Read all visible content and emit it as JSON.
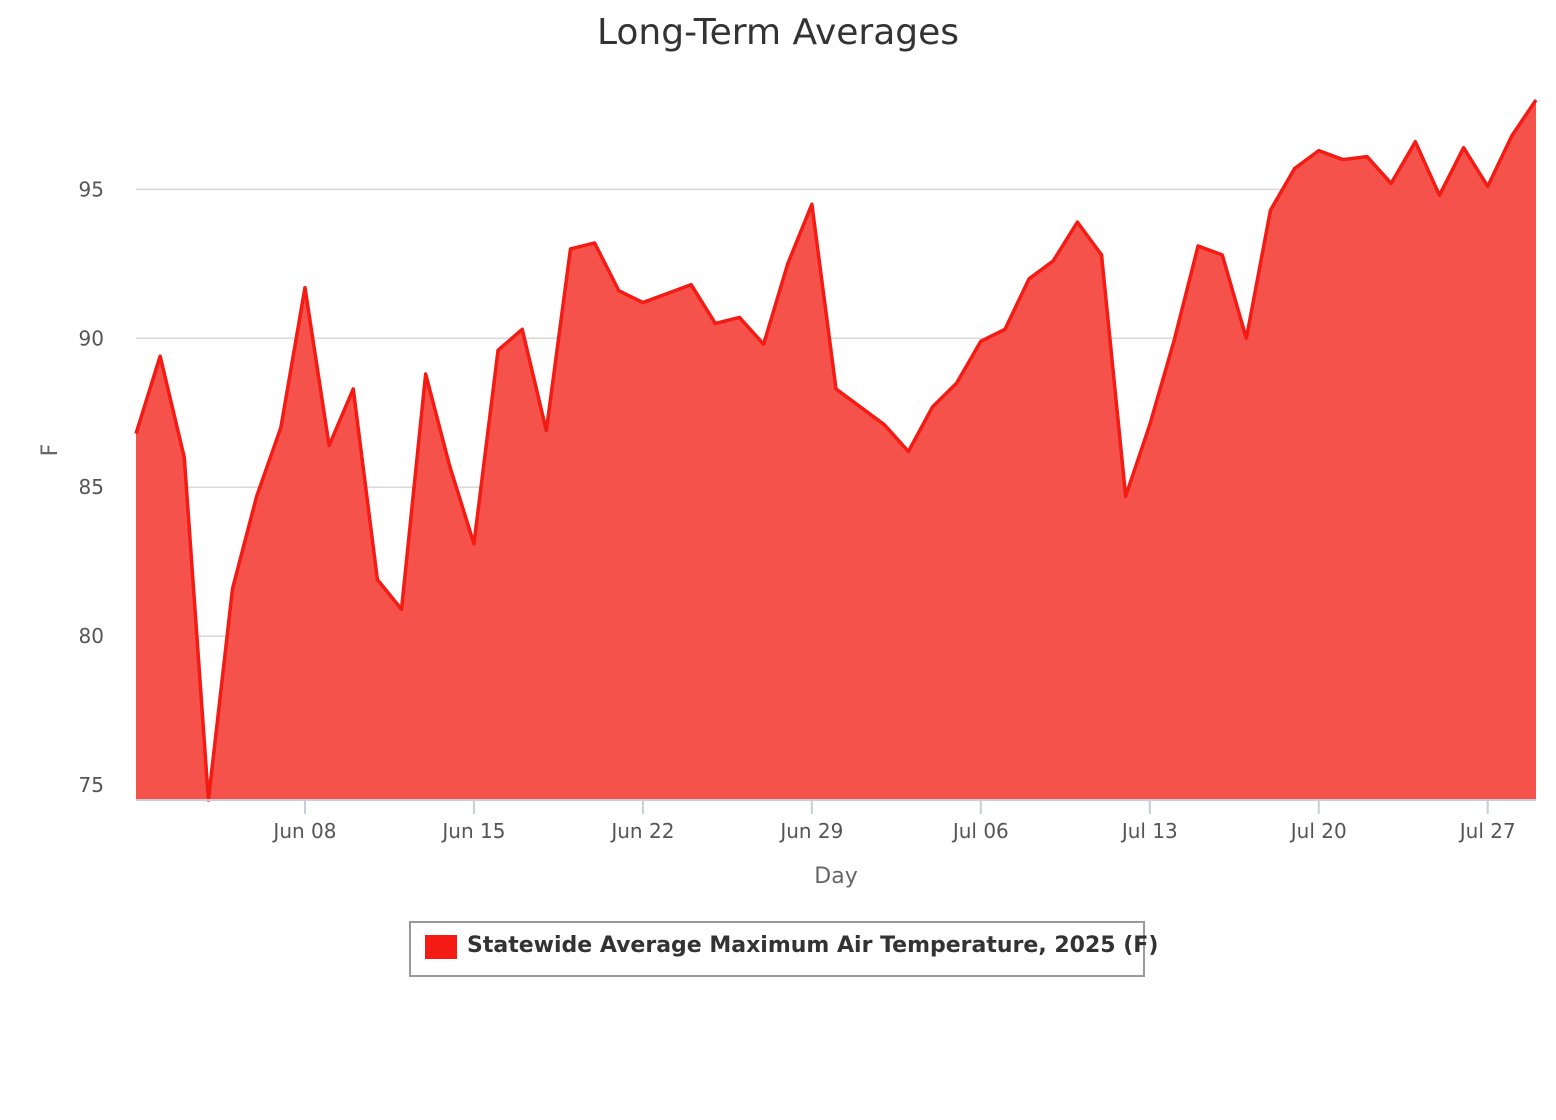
{
  "chart_data": {
    "type": "area",
    "title": "Long-Term Averages",
    "xlabel": "Day",
    "ylabel": "F",
    "ylim": [
      74.5,
      98
    ],
    "xlim": [
      "2025-06-01",
      "2025-07-29"
    ],
    "y_ticks": [
      75,
      80,
      85,
      90,
      95
    ],
    "x_ticks": [
      {
        "date": "2025-06-08",
        "label": "Jun 08"
      },
      {
        "date": "2025-06-15",
        "label": "Jun 15"
      },
      {
        "date": "2025-06-22",
        "label": "Jun 22"
      },
      {
        "date": "2025-06-29",
        "label": "Jun 29"
      },
      {
        "date": "2025-07-06",
        "label": "Jul 06"
      },
      {
        "date": "2025-07-13",
        "label": "Jul 13"
      },
      {
        "date": "2025-07-20",
        "label": "Jul 20"
      },
      {
        "date": "2025-07-27",
        "label": "Jul 27"
      }
    ],
    "grid": true,
    "legend_position": "bottom-center",
    "series": [
      {
        "name": "Statewide Average Maximum Air Temperature, 2025 (F)",
        "color": "#f31b13",
        "fill_color": "#f5524b",
        "x": [
          "2025-06-01",
          "2025-06-02",
          "2025-06-03",
          "2025-06-04",
          "2025-06-05",
          "2025-06-06",
          "2025-06-07",
          "2025-06-08",
          "2025-06-09",
          "2025-06-10",
          "2025-06-11",
          "2025-06-12",
          "2025-06-13",
          "2025-06-14",
          "2025-06-15",
          "2025-06-16",
          "2025-06-17",
          "2025-06-18",
          "2025-06-19",
          "2025-06-20",
          "2025-06-21",
          "2025-06-22",
          "2025-06-23",
          "2025-06-24",
          "2025-06-25",
          "2025-06-26",
          "2025-06-27",
          "2025-06-28",
          "2025-06-29",
          "2025-06-30",
          "2025-07-01",
          "2025-07-02",
          "2025-07-03",
          "2025-07-04",
          "2025-07-05",
          "2025-07-06",
          "2025-07-07",
          "2025-07-08",
          "2025-07-09",
          "2025-07-10",
          "2025-07-11",
          "2025-07-12",
          "2025-07-13",
          "2025-07-14",
          "2025-07-15",
          "2025-07-16",
          "2025-07-17",
          "2025-07-18",
          "2025-07-19",
          "2025-07-20",
          "2025-07-21",
          "2025-07-22",
          "2025-07-23",
          "2025-07-24",
          "2025-07-25",
          "2025-07-26",
          "2025-07-27",
          "2025-07-28",
          "2025-07-29"
        ],
        "values": [
          86.8,
          89.4,
          86.0,
          74.5,
          81.6,
          84.7,
          87.0,
          91.7,
          86.4,
          88.3,
          81.9,
          80.9,
          88.8,
          85.7,
          83.1,
          89.6,
          90.3,
          86.9,
          93.0,
          93.2,
          91.6,
          91.2,
          91.5,
          91.8,
          90.5,
          90.7,
          89.8,
          92.5,
          94.5,
          88.3,
          87.7,
          87.1,
          86.2,
          87.7,
          88.5,
          89.9,
          90.3,
          92.0,
          92.6,
          93.9,
          92.8,
          84.7,
          87.1,
          89.9,
          93.1,
          92.8,
          90.0,
          94.3,
          95.7,
          96.3,
          96.0,
          96.1,
          95.2,
          96.6,
          94.8,
          96.4,
          95.1,
          96.8,
          98.0
        ]
      }
    ]
  }
}
